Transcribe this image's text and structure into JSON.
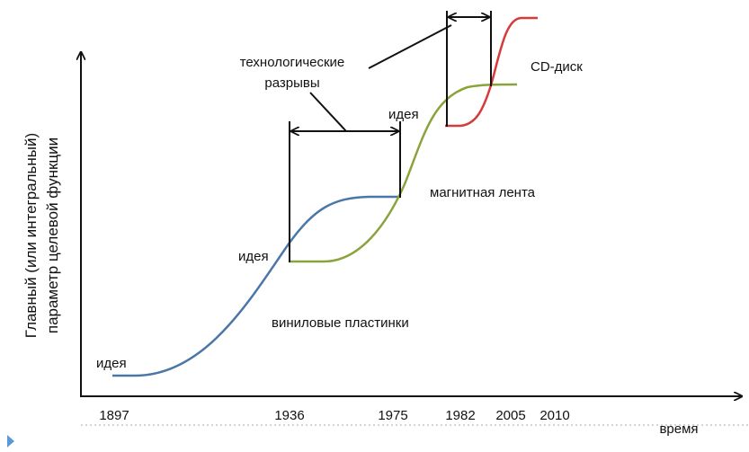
{
  "y_axis": {
    "label": [
      "Главный (или интегральный)",
      "параметр целевой функции"
    ]
  },
  "x_axis": {
    "label": "время",
    "ticks": [
      "1897",
      "1936",
      "1975",
      "1982",
      "2005",
      "2010"
    ]
  },
  "labels": {
    "gap": [
      "технологические",
      "разрывы"
    ],
    "idea_1": "идея",
    "idea_2": "идея",
    "idea_3": "идея",
    "vinyl": "виниловые пластинки",
    "tape": "магнитная лента",
    "cd": "CD-диск"
  }
}
